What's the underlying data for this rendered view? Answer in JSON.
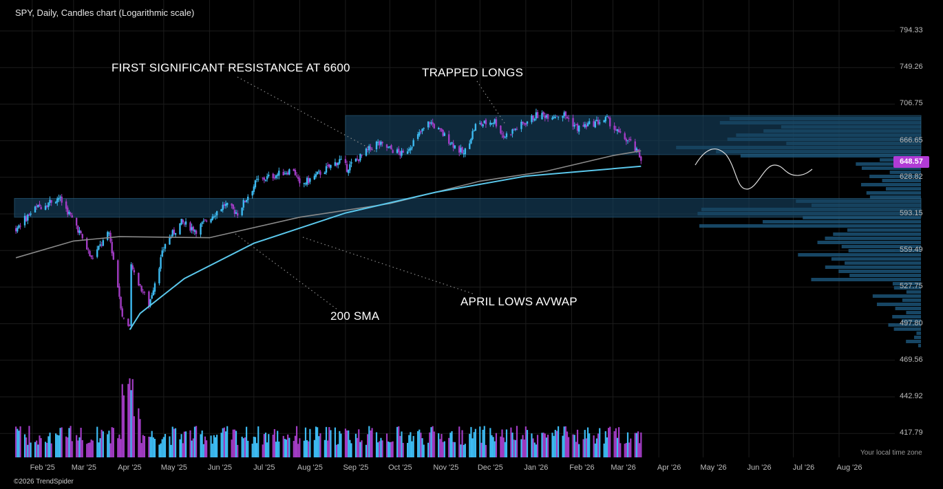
{
  "title": "SPY, Daily, Candles chart (Logarithmic scale)",
  "copyright": "©2026 TrendSpider",
  "timezone_note": "Your local time zone",
  "last_price": "648.57",
  "colors": {
    "background": "#000000",
    "bull": "#3dbbf2",
    "bear": "#a23cc4",
    "avwap": "#5bc8ec",
    "sma": "#8a8a8a",
    "zone": "#16405c",
    "volume_profile": "#1f5d86",
    "price_badge": "#b13bd6"
  },
  "annotations": {
    "resistance": "FIRST SIGNIFICANT RESISTANCE AT 6600",
    "trapped": "TRAPPED LONGS",
    "sma": "200 SMA",
    "avwap": "APRIL LOWS AVWAP"
  },
  "chart_data": {
    "type": "candlestick",
    "scale": "log",
    "grid": true,
    "y_ticks": [
      "794.33",
      "749.26",
      "706.75",
      "666.65",
      "628.82",
      "593.15",
      "559.49",
      "527.75",
      "497.80",
      "469.56",
      "442.92",
      "417.79"
    ],
    "x_ticks": [
      "Feb '25",
      "Mar '25",
      "Apr '25",
      "May '25",
      "Jun '25",
      "Jul '25",
      "Aug '25",
      "Sep '25",
      "Oct '25",
      "Nov '25",
      "Dec '25",
      "Jan '26",
      "Feb '26",
      "Mar '26",
      "Apr '26",
      "May '26",
      "Jun '26",
      "Jul '26",
      "Aug '26"
    ],
    "price_path_approx": [
      [
        "2025-01-21",
        580
      ],
      [
        "2025-02-03",
        598
      ],
      [
        "2025-02-19",
        609
      ],
      [
        "2025-03-03",
        582
      ],
      [
        "2025-03-13",
        552
      ],
      [
        "2025-03-25",
        575
      ],
      [
        "2025-04-03",
        505
      ],
      [
        "2025-04-08",
        493
      ],
      [
        "2025-04-09",
        545
      ],
      [
        "2025-04-21",
        513
      ],
      [
        "2025-05-02",
        566
      ],
      [
        "2025-05-13",
        585
      ],
      [
        "2025-05-23",
        578
      ],
      [
        "2025-06-11",
        602
      ],
      [
        "2025-06-20",
        594
      ],
      [
        "2025-07-03",
        625
      ],
      [
        "2025-07-28",
        637
      ],
      [
        "2025-08-01",
        620
      ],
      [
        "2025-08-28",
        646
      ],
      [
        "2025-09-02",
        638
      ],
      [
        "2025-09-22",
        664
      ],
      [
        "2025-10-10",
        652
      ],
      [
        "2025-10-28",
        687
      ],
      [
        "2025-11-20",
        652
      ],
      [
        "2025-11-28",
        683
      ],
      [
        "2025-12-11",
        688
      ],
      [
        "2025-12-17",
        671
      ],
      [
        "2026-01-08",
        694
      ],
      [
        "2026-01-27",
        695
      ],
      [
        "2026-02-05",
        680
      ],
      [
        "2026-02-25",
        690
      ],
      [
        "2026-03-06",
        672
      ],
      [
        "2026-03-12",
        666
      ],
      [
        "2026-03-20",
        648
      ]
    ],
    "sma200_path_approx": [
      [
        "2025-01-21",
        553
      ],
      [
        "2025-03-01",
        568
      ],
      [
        "2025-04-01",
        572
      ],
      [
        "2025-06-01",
        571
      ],
      [
        "2025-08-01",
        590
      ],
      [
        "2025-10-01",
        603
      ],
      [
        "2025-12-01",
        625
      ],
      [
        "2026-01-15",
        635
      ],
      [
        "2026-03-01",
        651
      ],
      [
        "2026-03-20",
        656
      ]
    ],
    "avwap_path_approx": [
      [
        "2025-04-08",
        493
      ],
      [
        "2025-04-15",
        506
      ],
      [
        "2025-05-15",
        535
      ],
      [
        "2025-07-01",
        566
      ],
      [
        "2025-09-01",
        594
      ],
      [
        "2025-11-01",
        614
      ],
      [
        "2026-01-01",
        630
      ],
      [
        "2026-03-20",
        640
      ]
    ],
    "resistance_zones": [
      {
        "low": 652,
        "high": 694
      },
      {
        "low": 590,
        "high": 608
      }
    ],
    "volume_spikes": [
      "2025-04-04",
      "2025-04-07",
      "2025-04-09"
    ]
  }
}
